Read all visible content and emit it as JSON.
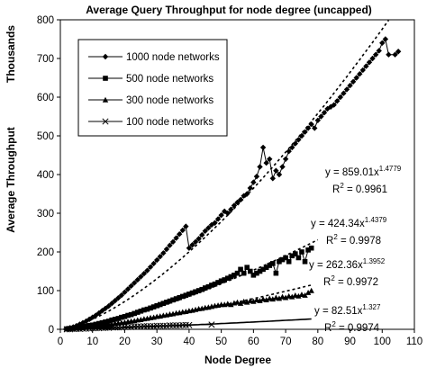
{
  "chart_data": {
    "type": "scatter",
    "title": "Average Query Throughput for node degree (uncapped)",
    "xlabel": "Node Degree",
    "ylabel": "Average Throughput",
    "ylabel_units": "Thousands",
    "xlim": [
      0,
      110
    ],
    "ylim": [
      0,
      800
    ],
    "xticks": [
      "0",
      "10",
      "20",
      "30",
      "40",
      "50",
      "60",
      "70",
      "80",
      "90",
      "100",
      "110"
    ],
    "yticks": [
      "0",
      "100",
      "200",
      "300",
      "400",
      "500",
      "600",
      "700",
      "800"
    ],
    "grid": false,
    "legend_position": "top-left",
    "series": [
      {
        "name": "1000 node networks",
        "marker": "diamond",
        "color": "#000000",
        "x": [
          2,
          3,
          4,
          5,
          6,
          7,
          8,
          9,
          10,
          11,
          12,
          13,
          14,
          15,
          16,
          17,
          18,
          19,
          20,
          21,
          22,
          23,
          24,
          25,
          26,
          27,
          28,
          29,
          30,
          31,
          32,
          33,
          34,
          35,
          36,
          37,
          38,
          39,
          40,
          41,
          42,
          43,
          44,
          45,
          46,
          47,
          48,
          49,
          50,
          51,
          52,
          53,
          54,
          55,
          56,
          57,
          58,
          59,
          60,
          61,
          62,
          63,
          64,
          65,
          66,
          67,
          68,
          69,
          70,
          71,
          72,
          73,
          74,
          75,
          76,
          77,
          78,
          79,
          80,
          81,
          82,
          83,
          84,
          85,
          86,
          87,
          88,
          89,
          90,
          91,
          92,
          93,
          94,
          95,
          96,
          97,
          98,
          99,
          100,
          101,
          102,
          104,
          105
        ],
        "values": [
          2,
          4,
          6,
          9,
          13,
          17,
          21,
          26,
          31,
          36,
          42,
          48,
          54,
          60,
          67,
          74,
          81,
          88,
          96,
          104,
          112,
          120,
          128,
          136,
          144,
          152,
          161,
          170,
          179,
          188,
          197,
          207,
          217,
          226,
          236,
          246,
          256,
          266,
          210,
          218,
          226,
          234,
          244,
          254,
          262,
          270,
          275,
          285,
          295,
          305,
          300,
          310,
          320,
          328,
          335,
          345,
          350,
          365,
          380,
          395,
          420,
          470,
          430,
          440,
          390,
          410,
          400,
          420,
          440,
          460,
          470,
          480,
          490,
          500,
          510,
          520,
          530,
          520,
          540,
          550,
          560,
          570,
          575,
          580,
          590,
          600,
          610,
          620,
          630,
          640,
          650,
          660,
          670,
          680,
          690,
          700,
          710,
          720,
          740,
          750,
          710,
          710,
          718
        ],
        "fit_equation": "y = 859.01x",
        "fit_exponent": "1.4779",
        "r2": "R",
        "r2_value": " = 0.9961",
        "fit_coef": 859.01,
        "fit_pow": 1.4779
      },
      {
        "name": "500 node networks",
        "marker": "square",
        "color": "#000000",
        "x": [
          2,
          3,
          4,
          5,
          6,
          7,
          8,
          9,
          10,
          11,
          12,
          13,
          14,
          15,
          16,
          17,
          18,
          19,
          20,
          21,
          22,
          23,
          24,
          25,
          26,
          27,
          28,
          29,
          30,
          31,
          32,
          33,
          34,
          35,
          36,
          37,
          38,
          39,
          40,
          41,
          42,
          43,
          44,
          45,
          46,
          47,
          48,
          49,
          50,
          51,
          52,
          53,
          54,
          55,
          56,
          57,
          58,
          59,
          60,
          61,
          62,
          63,
          64,
          65,
          66,
          67,
          68,
          69,
          70,
          71,
          72,
          73,
          74,
          75,
          76,
          77,
          78
        ],
        "values": [
          1,
          2,
          3,
          4,
          5,
          6,
          8,
          10,
          11,
          13,
          15,
          17,
          19,
          21,
          24,
          26,
          28,
          31,
          33,
          36,
          38,
          41,
          44,
          47,
          50,
          52,
          55,
          58,
          61,
          64,
          67,
          70,
          73,
          76,
          79,
          82,
          85,
          88,
          91,
          94,
          97,
          100,
          103,
          107,
          110,
          114,
          117,
          121,
          125,
          128,
          132,
          136,
          140,
          145,
          155,
          145,
          160,
          150,
          140,
          145,
          150,
          155,
          160,
          165,
          170,
          145,
          175,
          180,
          185,
          175,
          190,
          195,
          185,
          200,
          175,
          205,
          210
        ],
        "fit_equation": "y = 424.34x",
        "fit_exponent": "1.4379",
        "r2": "R",
        "r2_value": " = 0.9978",
        "fit_coef": 424.34,
        "fit_pow": 1.4379
      },
      {
        "name": "300 node networks",
        "marker": "triangle",
        "color": "#000000",
        "x": [
          2,
          3,
          4,
          5,
          6,
          7,
          8,
          9,
          10,
          11,
          12,
          13,
          14,
          15,
          16,
          17,
          18,
          19,
          20,
          21,
          22,
          23,
          24,
          25,
          26,
          27,
          28,
          29,
          30,
          31,
          32,
          33,
          34,
          35,
          36,
          37,
          38,
          39,
          40,
          41,
          42,
          43,
          44,
          45,
          46,
          47,
          48,
          49,
          50,
          51,
          52,
          53,
          54,
          55,
          56,
          57,
          58,
          59,
          60,
          61,
          62,
          63,
          64,
          65,
          66,
          67,
          68,
          69,
          70,
          71,
          72,
          73,
          74,
          75,
          76,
          77,
          78
        ],
        "values": [
          1,
          1,
          2,
          3,
          3,
          4,
          5,
          6,
          7,
          8,
          9,
          10,
          11,
          12,
          13,
          15,
          16,
          17,
          18,
          20,
          21,
          22,
          24,
          25,
          27,
          28,
          30,
          31,
          33,
          34,
          36,
          37,
          39,
          40,
          42,
          43,
          45,
          46,
          48,
          49,
          51,
          53,
          54,
          56,
          57,
          59,
          61,
          62,
          64,
          64,
          66,
          64,
          68,
          70,
          67,
          72,
          70,
          74,
          72,
          76,
          74,
          78,
          76,
          80,
          78,
          82,
          80,
          84,
          82,
          86,
          84,
          88,
          86,
          90,
          88,
          95,
          100
        ],
        "fit_equation": "y = 262.36x",
        "fit_exponent": "1.3952",
        "r2": "R",
        "r2_value": " = 0.9972",
        "fit_coef": 262.36,
        "fit_pow": 1.3952
      },
      {
        "name": "100 node networks",
        "marker": "x",
        "color": "#000000",
        "x": [
          2,
          3,
          4,
          5,
          6,
          7,
          8,
          9,
          10,
          11,
          12,
          13,
          14,
          15,
          16,
          17,
          18,
          19,
          20,
          21,
          22,
          23,
          24,
          25,
          26,
          27,
          28,
          29,
          30,
          31,
          32,
          33,
          34,
          35,
          36,
          37,
          38,
          39,
          40,
          47
        ],
        "values": [
          0,
          0,
          1,
          1,
          1,
          2,
          2,
          2,
          3,
          3,
          3,
          4,
          4,
          4,
          5,
          5,
          5,
          5,
          6,
          6,
          6,
          7,
          7,
          7,
          8,
          8,
          8,
          8,
          9,
          9,
          9,
          9,
          10,
          10,
          10,
          10,
          11,
          11,
          11,
          12
        ],
        "fit_equation": "y = 82.51x",
        "fit_exponent": "1.327",
        "r2": "R",
        "r2_value": " = 0.9974",
        "fit_coef": 82.51,
        "fit_pow": 1.327
      }
    ]
  }
}
